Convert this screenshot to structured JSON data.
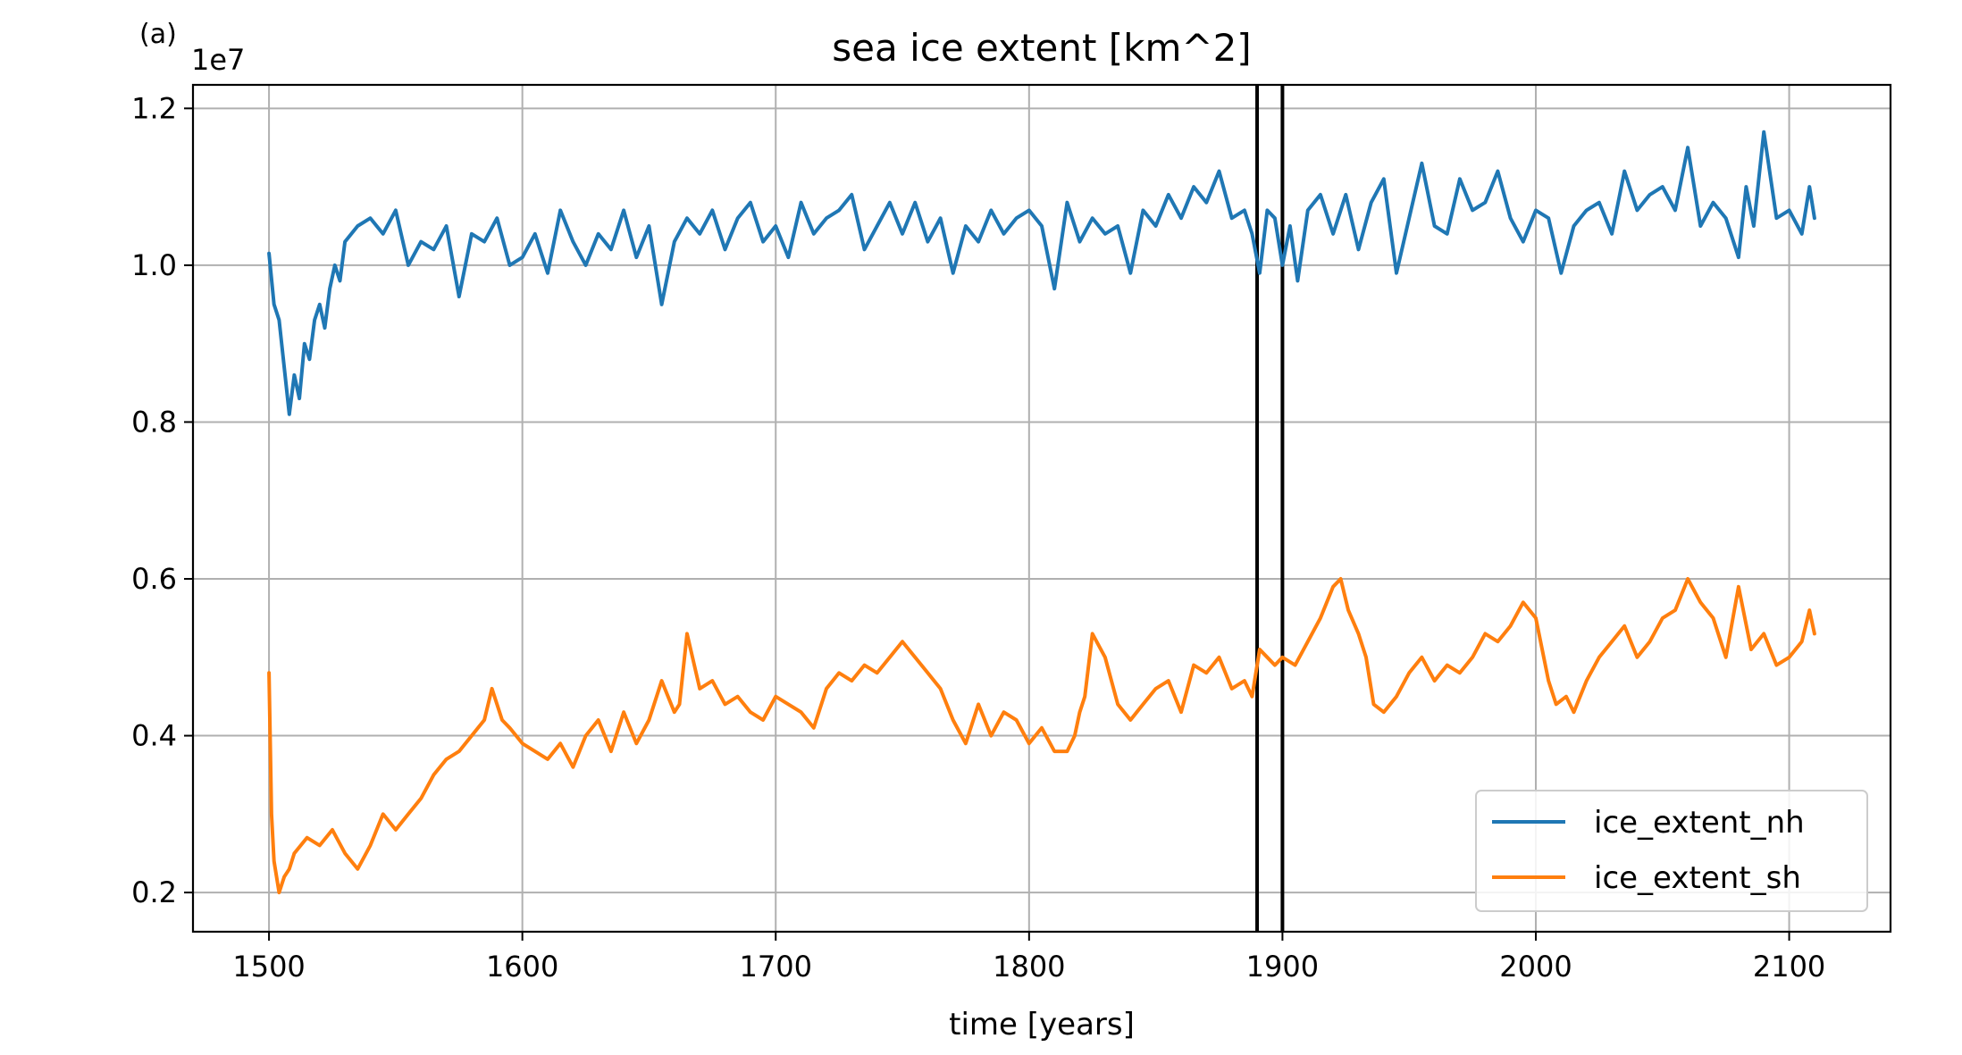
{
  "chart_data": {
    "type": "line",
    "title": "sea ice extent [km^2]",
    "panel_label": "(a)",
    "xlabel": "time [years]",
    "ylabel": "",
    "y_offset_label": "1e7",
    "xlim": [
      1470,
      2140
    ],
    "ylim": [
      0.15,
      1.23
    ],
    "xticks": [
      1500,
      1600,
      1700,
      1800,
      1900,
      2000,
      2100
    ],
    "yticks": [
      0.2,
      0.4,
      0.6,
      0.8,
      1.0,
      1.2
    ],
    "grid": true,
    "legend_position": "lower-right",
    "vertical_lines": [
      1890,
      1900
    ],
    "series": [
      {
        "name": "ice_extent_nh",
        "color": "#1f77b4",
        "x": [
          1500,
          1502,
          1504,
          1506,
          1508,
          1510,
          1512,
          1514,
          1516,
          1518,
          1520,
          1522,
          1524,
          1526,
          1528,
          1530,
          1535,
          1540,
          1545,
          1550,
          1555,
          1560,
          1565,
          1570,
          1575,
          1580,
          1585,
          1590,
          1595,
          1600,
          1605,
          1610,
          1615,
          1620,
          1625,
          1630,
          1635,
          1640,
          1645,
          1650,
          1655,
          1660,
          1665,
          1670,
          1675,
          1680,
          1685,
          1690,
          1695,
          1700,
          1705,
          1710,
          1715,
          1720,
          1725,
          1730,
          1735,
          1740,
          1745,
          1750,
          1755,
          1760,
          1765,
          1770,
          1775,
          1780,
          1785,
          1790,
          1795,
          1800,
          1805,
          1810,
          1815,
          1820,
          1825,
          1830,
          1835,
          1840,
          1845,
          1850,
          1855,
          1860,
          1865,
          1870,
          1875,
          1880,
          1885,
          1888,
          1891,
          1894,
          1897,
          1900,
          1903,
          1906,
          1910,
          1915,
          1920,
          1925,
          1930,
          1935,
          1940,
          1945,
          1950,
          1955,
          1960,
          1965,
          1970,
          1975,
          1980,
          1985,
          1990,
          1995,
          2000,
          2005,
          2010,
          2015,
          2020,
          2025,
          2030,
          2035,
          2040,
          2045,
          2050,
          2055,
          2060,
          2065,
          2070,
          2075,
          2080,
          2083,
          2086,
          2090,
          2095,
          2100,
          2105,
          2108,
          2110
        ],
        "y": [
          1.015,
          0.95,
          0.93,
          0.87,
          0.81,
          0.86,
          0.83,
          0.9,
          0.88,
          0.93,
          0.95,
          0.92,
          0.97,
          1.0,
          0.98,
          1.03,
          1.05,
          1.06,
          1.04,
          1.07,
          1.0,
          1.03,
          1.02,
          1.05,
          0.96,
          1.04,
          1.03,
          1.06,
          1.0,
          1.01,
          1.04,
          0.99,
          1.07,
          1.03,
          1.0,
          1.04,
          1.02,
          1.07,
          1.01,
          1.05,
          0.95,
          1.03,
          1.06,
          1.04,
          1.07,
          1.02,
          1.06,
          1.08,
          1.03,
          1.05,
          1.01,
          1.08,
          1.04,
          1.06,
          1.07,
          1.09,
          1.02,
          1.05,
          1.08,
          1.04,
          1.08,
          1.03,
          1.06,
          0.99,
          1.05,
          1.03,
          1.07,
          1.04,
          1.06,
          1.07,
          1.05,
          0.97,
          1.08,
          1.03,
          1.06,
          1.04,
          1.05,
          0.99,
          1.07,
          1.05,
          1.09,
          1.06,
          1.1,
          1.08,
          1.12,
          1.06,
          1.07,
          1.04,
          0.99,
          1.07,
          1.06,
          1.0,
          1.05,
          0.98,
          1.07,
          1.09,
          1.04,
          1.09,
          1.02,
          1.08,
          1.11,
          0.99,
          1.06,
          1.13,
          1.05,
          1.04,
          1.11,
          1.07,
          1.08,
          1.12,
          1.06,
          1.03,
          1.07,
          1.06,
          0.99,
          1.05,
          1.07,
          1.08,
          1.04,
          1.12,
          1.07,
          1.09,
          1.1,
          1.07,
          1.15,
          1.05,
          1.08,
          1.06,
          1.01,
          1.1,
          1.05,
          1.17,
          1.06,
          1.07,
          1.04,
          1.1,
          1.06
        ],
        "legend_label": "ice_extent_nh"
      },
      {
        "name": "ice_extent_sh",
        "color": "#ff7f0e",
        "x": [
          1500,
          1501,
          1502,
          1504,
          1506,
          1508,
          1510,
          1515,
          1520,
          1525,
          1530,
          1535,
          1540,
          1545,
          1550,
          1555,
          1560,
          1565,
          1570,
          1575,
          1580,
          1585,
          1588,
          1592,
          1595,
          1600,
          1605,
          1610,
          1615,
          1620,
          1625,
          1630,
          1635,
          1640,
          1645,
          1650,
          1655,
          1660,
          1662,
          1665,
          1670,
          1675,
          1680,
          1685,
          1690,
          1695,
          1700,
          1705,
          1710,
          1715,
          1720,
          1725,
          1730,
          1735,
          1740,
          1745,
          1750,
          1755,
          1760,
          1765,
          1770,
          1775,
          1780,
          1785,
          1790,
          1795,
          1800,
          1805,
          1810,
          1815,
          1818,
          1820,
          1822,
          1825,
          1830,
          1835,
          1840,
          1845,
          1850,
          1855,
          1860,
          1865,
          1870,
          1875,
          1880,
          1885,
          1888,
          1891,
          1894,
          1897,
          1900,
          1905,
          1910,
          1915,
          1920,
          1923,
          1926,
          1930,
          1933,
          1936,
          1940,
          1945,
          1950,
          1955,
          1960,
          1965,
          1970,
          1975,
          1980,
          1985,
          1990,
          1995,
          2000,
          2005,
          2008,
          2012,
          2015,
          2020,
          2025,
          2030,
          2035,
          2040,
          2045,
          2050,
          2055,
          2060,
          2065,
          2070,
          2075,
          2080,
          2085,
          2090,
          2095,
          2100,
          2105,
          2108,
          2110
        ],
        "y": [
          0.48,
          0.3,
          0.24,
          0.2,
          0.22,
          0.23,
          0.25,
          0.27,
          0.26,
          0.28,
          0.25,
          0.23,
          0.26,
          0.3,
          0.28,
          0.3,
          0.32,
          0.35,
          0.37,
          0.38,
          0.4,
          0.42,
          0.46,
          0.42,
          0.41,
          0.39,
          0.38,
          0.37,
          0.39,
          0.36,
          0.4,
          0.42,
          0.38,
          0.43,
          0.39,
          0.42,
          0.47,
          0.43,
          0.44,
          0.53,
          0.46,
          0.47,
          0.44,
          0.45,
          0.43,
          0.42,
          0.45,
          0.44,
          0.43,
          0.41,
          0.46,
          0.48,
          0.47,
          0.49,
          0.48,
          0.5,
          0.52,
          0.5,
          0.48,
          0.46,
          0.42,
          0.39,
          0.44,
          0.4,
          0.43,
          0.42,
          0.39,
          0.41,
          0.38,
          0.38,
          0.4,
          0.43,
          0.45,
          0.53,
          0.5,
          0.44,
          0.42,
          0.44,
          0.46,
          0.47,
          0.43,
          0.49,
          0.48,
          0.5,
          0.46,
          0.47,
          0.45,
          0.51,
          0.5,
          0.49,
          0.5,
          0.49,
          0.52,
          0.55,
          0.59,
          0.6,
          0.56,
          0.53,
          0.5,
          0.44,
          0.43,
          0.45,
          0.48,
          0.5,
          0.47,
          0.49,
          0.48,
          0.5,
          0.53,
          0.52,
          0.54,
          0.57,
          0.55,
          0.47,
          0.44,
          0.45,
          0.43,
          0.47,
          0.5,
          0.52,
          0.54,
          0.5,
          0.52,
          0.55,
          0.56,
          0.6,
          0.57,
          0.55,
          0.5,
          0.59,
          0.51,
          0.53,
          0.49,
          0.5,
          0.52,
          0.56,
          0.53
        ]
      }
    ]
  }
}
